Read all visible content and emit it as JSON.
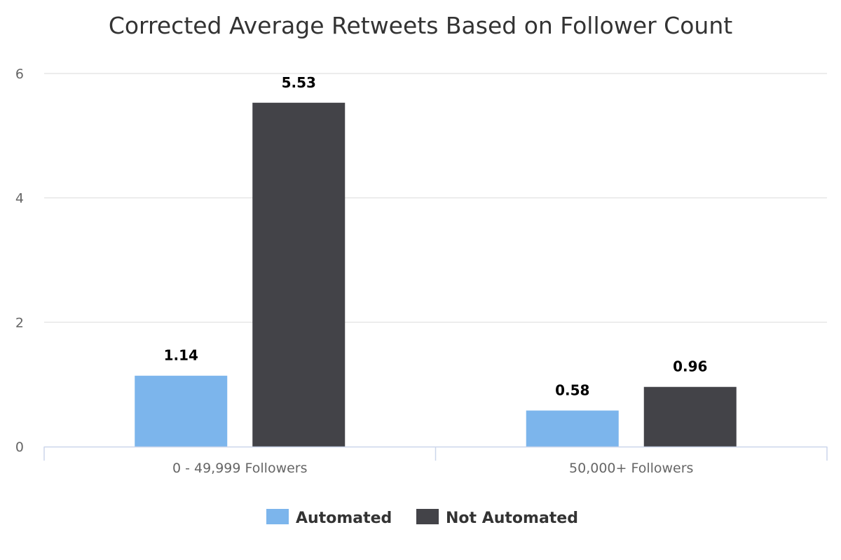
{
  "chart_data": {
    "type": "bar",
    "title": "Corrected Average Retweets Based on Follower Count",
    "xlabel": "",
    "ylabel": "",
    "categories": [
      "0 - 49,999 Followers",
      "50,000+ Followers"
    ],
    "series": [
      {
        "name": "Automated",
        "values": [
          1.14,
          0.58
        ],
        "color": "#7cb5ec"
      },
      {
        "name": "Not Automated",
        "values": [
          5.53,
          0.96
        ],
        "color": "#434348"
      }
    ],
    "ylim": [
      0,
      6
    ],
    "yticks": [
      0,
      2,
      4,
      6
    ],
    "grid": true,
    "legend_position": "bottom"
  }
}
